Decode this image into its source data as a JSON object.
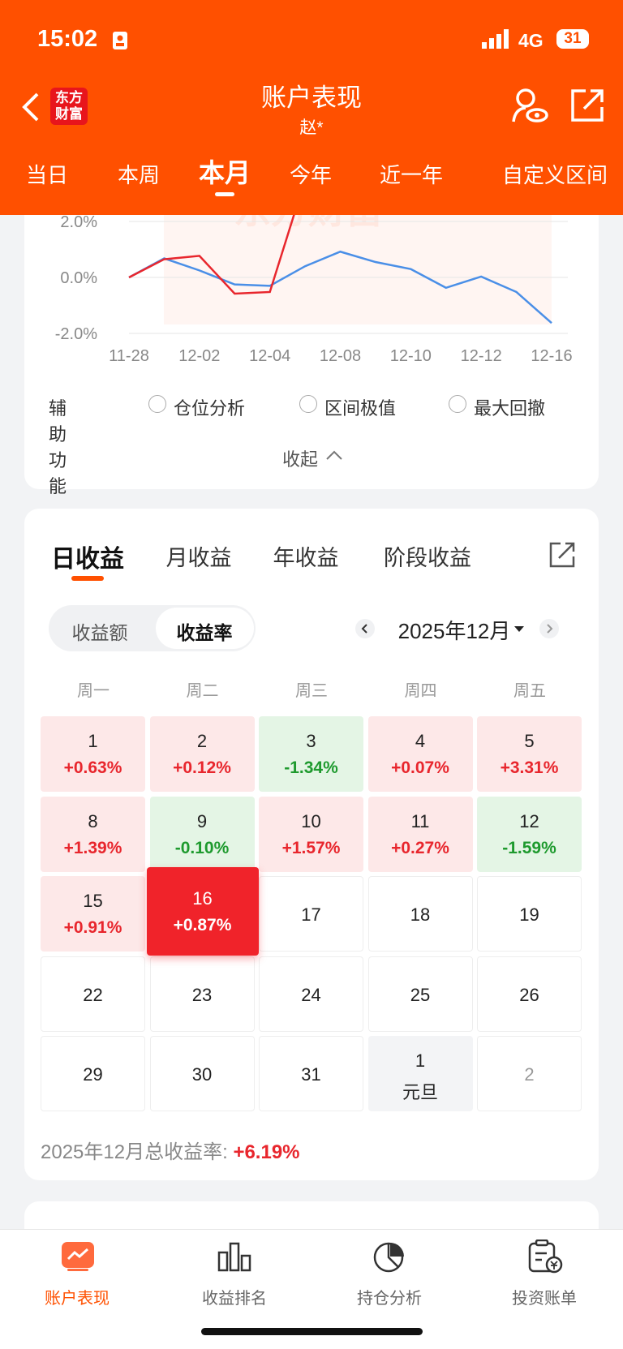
{
  "status_bar": {
    "time": "15:02",
    "network": "4G",
    "battery": "31"
  },
  "header": {
    "logo": [
      "东方",
      "财富"
    ],
    "title": "账户表现",
    "subtitle": "赵*"
  },
  "period_tabs": {
    "items": [
      "当日",
      "本周",
      "本月",
      "今年",
      "近一年",
      "自定义区间"
    ],
    "active": 2
  },
  "chart_data": {
    "type": "line",
    "watermark": "东方财富",
    "categories": [
      "11-28",
      null,
      "12-02",
      null,
      "12-04",
      null,
      "12-08",
      null,
      "12-10",
      null,
      "12-12",
      null,
      "12-16"
    ],
    "series": [
      {
        "color": "#4a8fe7",
        "values": [
          0,
          0.68,
          0.25,
          -0.25,
          -0.3,
          0.4,
          0.92,
          0.55,
          0.3,
          -0.37,
          0.03,
          -0.52,
          -1.63
        ]
      },
      {
        "color": "#e8262d",
        "values": [
          0,
          0.65,
          0.77,
          -0.58,
          -0.52,
          3.5,
          null,
          null,
          null,
          null,
          null,
          null,
          null
        ]
      }
    ],
    "ylim": [
      -2,
      2
    ],
    "yticks": [
      {
        "value": 2,
        "label": "2.0%"
      },
      {
        "value": 0,
        "label": "0.0%"
      },
      {
        "value": -2,
        "label": "-2.0%"
      }
    ],
    "grid": true
  },
  "aux": {
    "label": "辅助功能",
    "options": [
      "仓位分析",
      "区间极值",
      "最大回撤"
    ],
    "collapse": "收起"
  },
  "returns": {
    "tabs": [
      "日收益",
      "月收益",
      "年收益",
      "阶段收益"
    ],
    "active_tab": 0,
    "toggle": [
      "收益额",
      "收益率"
    ],
    "active_toggle": 1,
    "month": "2025年12月",
    "weekdays": [
      "周一",
      "周二",
      "周三",
      "周四",
      "周五"
    ],
    "cells": [
      {
        "day": "1",
        "value": "+0.63%"
      },
      {
        "day": "2",
        "value": "+0.12%"
      },
      {
        "day": "3",
        "value": "-1.34%"
      },
      {
        "day": "4",
        "value": "+0.07%"
      },
      {
        "day": "5",
        "value": "+3.31%"
      },
      {
        "day": "8",
        "value": "+1.39%"
      },
      {
        "day": "9",
        "value": "-0.10%"
      },
      {
        "day": "10",
        "value": "+1.57%"
      },
      {
        "day": "11",
        "value": "+0.27%"
      },
      {
        "day": "12",
        "value": "-1.59%"
      },
      {
        "day": "15",
        "value": "+0.91%"
      },
      {
        "day": "16",
        "value": "+0.87%",
        "selected": true
      },
      {
        "day": "17"
      },
      {
        "day": "18"
      },
      {
        "day": "19"
      },
      {
        "day": "22"
      },
      {
        "day": "23"
      },
      {
        "day": "24"
      },
      {
        "day": "25"
      },
      {
        "day": "26"
      },
      {
        "day": "29"
      },
      {
        "day": "30"
      },
      {
        "day": "31"
      },
      {
        "day": "1",
        "holiday": "元旦"
      },
      {
        "day": "2",
        "other_month": true
      }
    ],
    "total_label": "2025年12月总收益率:",
    "total_value": "+6.19%"
  },
  "bottom_nav": {
    "items": [
      "账户表现",
      "收益排名",
      "持仓分析",
      "投资账单"
    ],
    "active": 0
  }
}
